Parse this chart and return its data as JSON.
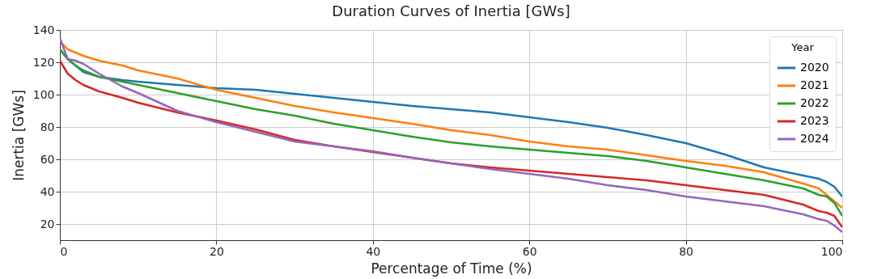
{
  "chart_data": {
    "type": "line",
    "title": "Duration Curves of Inertia [GWs]",
    "xlabel": "Percentage of Time (%)",
    "ylabel": "Inertia [GWs]",
    "legend_title": "Year",
    "legend": "top right",
    "grid": true,
    "xlim": [
      0,
      100
    ],
    "xticks": [
      0,
      20,
      40,
      60,
      80,
      100
    ],
    "ylim": [
      10,
      140
    ],
    "yticks": [
      20,
      40,
      60,
      80,
      100,
      120,
      140
    ],
    "x": [
      0,
      1,
      2,
      3,
      5,
      8,
      10,
      15,
      20,
      25,
      30,
      35,
      40,
      45,
      50,
      55,
      60,
      65,
      70,
      75,
      80,
      85,
      90,
      95,
      97,
      98,
      99,
      100
    ],
    "series": [
      {
        "name": "2020",
        "color": "#1f77b4",
        "values": [
          128,
          122,
          118,
          114,
          111,
          109,
          108,
          106,
          104,
          103,
          100.5,
          98,
          95.5,
          93,
          91,
          89,
          86,
          83,
          79.5,
          75,
          70,
          63,
          55,
          50,
          48,
          46,
          43,
          37
        ]
      },
      {
        "name": "2021",
        "color": "#ff7f0e",
        "values": [
          133,
          128,
          126,
          124,
          121,
          118,
          115,
          110,
          103,
          98,
          93,
          89,
          85.5,
          82,
          78,
          75,
          71,
          68,
          66,
          62.5,
          59,
          56,
          52,
          45,
          42,
          38,
          34,
          30
        ]
      },
      {
        "name": "2022",
        "color": "#2ca02c",
        "values": [
          128,
          122,
          118,
          115,
          111,
          108,
          106,
          101,
          96,
          91,
          87,
          82,
          78,
          74,
          70.5,
          68,
          66,
          64,
          62,
          59,
          55,
          51,
          47,
          42,
          38,
          37,
          33,
          25
        ]
      },
      {
        "name": "2023",
        "color": "#d62728",
        "values": [
          121,
          113,
          109,
          106,
          102,
          98,
          95,
          89,
          84,
          78.5,
          72,
          68,
          64.5,
          61,
          57.5,
          55,
          53,
          51,
          49,
          47,
          44,
          41,
          38,
          32,
          28,
          27,
          25,
          18
        ]
      },
      {
        "name": "2024",
        "color": "#9467bd",
        "values": [
          135,
          122,
          121,
          119,
          113,
          105,
          101,
          90,
          83,
          77,
          71,
          68,
          65,
          61,
          57.5,
          54,
          51,
          48,
          44,
          41,
          37,
          34,
          31,
          26,
          23,
          22,
          19,
          15
        ]
      }
    ]
  }
}
